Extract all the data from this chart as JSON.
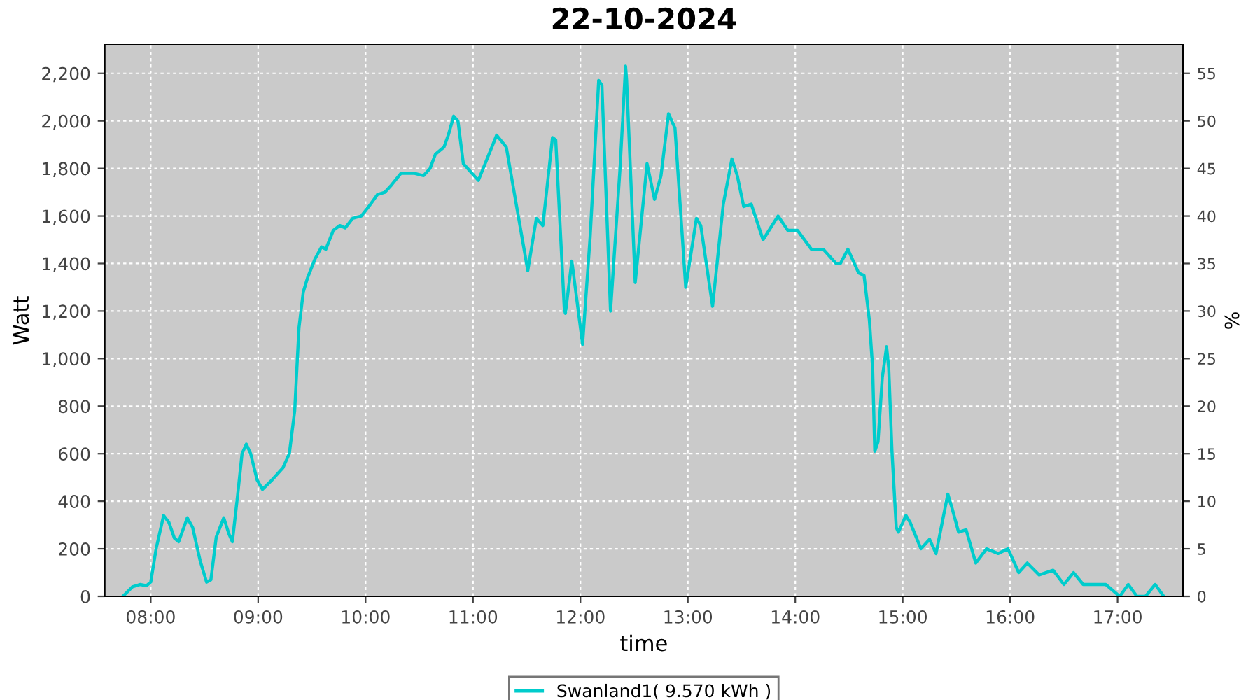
{
  "chart_data": {
    "type": "line",
    "title": "22-10-2024",
    "xlabel": "time",
    "ylabel": "Watt",
    "y2label": "%",
    "xlim": [
      7.57,
      17.61
    ],
    "ylim": [
      0,
      2320
    ],
    "y2lim": [
      0,
      58
    ],
    "xticks": [
      {
        "value": 8,
        "label": "08:00"
      },
      {
        "value": 9,
        "label": "09:00"
      },
      {
        "value": 10,
        "label": "10:00"
      },
      {
        "value": 11,
        "label": "11:00"
      },
      {
        "value": 12,
        "label": "12:00"
      },
      {
        "value": 13,
        "label": "13:00"
      },
      {
        "value": 14,
        "label": "14:00"
      },
      {
        "value": 15,
        "label": "15:00"
      },
      {
        "value": 16,
        "label": "16:00"
      },
      {
        "value": 17,
        "label": "17:00"
      }
    ],
    "yticks": [
      0,
      {
        "value": 200,
        "label": "200"
      },
      {
        "value": 400,
        "label": "400"
      },
      {
        "value": 600,
        "label": "600"
      },
      {
        "value": 800,
        "label": "800"
      },
      {
        "value": 1000,
        "label": "1,000"
      },
      {
        "value": 1200,
        "label": "1,200"
      },
      {
        "value": 1400,
        "label": "1,400"
      },
      {
        "value": 1600,
        "label": "1,600"
      },
      {
        "value": 1800,
        "label": "1,800"
      },
      {
        "value": 2000,
        "label": "2,000"
      },
      {
        "value": 2200,
        "label": "2,200"
      }
    ],
    "y2ticks": [
      0,
      5,
      10,
      15,
      20,
      25,
      30,
      35,
      40,
      45,
      50,
      55
    ],
    "grid": true,
    "legend": "bottom",
    "marker": "none",
    "line_style": "solid",
    "series": [
      {
        "name": "Swanland1( 9.570 kWh )",
        "color": "#00cccc",
        "x": [
          7.74,
          7.83,
          7.9,
          7.96,
          8.0,
          8.05,
          8.12,
          8.17,
          8.22,
          8.26,
          8.34,
          8.39,
          8.46,
          8.52,
          8.56,
          8.61,
          8.68,
          8.73,
          8.76,
          8.81,
          8.85,
          8.89,
          8.93,
          8.99,
          9.04,
          9.13,
          9.23,
          9.29,
          9.34,
          9.38,
          9.42,
          9.46,
          9.53,
          9.59,
          9.63,
          9.7,
          9.76,
          9.81,
          9.88,
          9.96,
          10.03,
          10.11,
          10.18,
          10.24,
          10.33,
          10.45,
          10.54,
          10.6,
          10.65,
          10.73,
          10.77,
          10.82,
          10.86,
          10.91,
          11.05,
          11.22,
          11.31,
          11.51,
          11.59,
          11.65,
          11.74,
          11.77,
          11.85,
          11.86,
          11.92,
          12.02,
          12.09,
          12.17,
          12.2,
          12.28,
          12.37,
          12.42,
          12.43,
          12.51,
          12.62,
          12.69,
          12.75,
          12.82,
          12.88,
          12.98,
          13.08,
          13.12,
          13.23,
          13.33,
          13.41,
          13.46,
          13.52,
          13.59,
          13.7,
          13.84,
          13.93,
          14.02,
          14.15,
          14.26,
          14.38,
          14.42,
          14.49,
          14.59,
          14.64,
          14.69,
          14.72,
          14.74,
          14.77,
          14.81,
          14.85,
          14.87,
          14.9,
          14.94,
          14.96,
          15.03,
          15.07,
          15.17,
          15.25,
          15.31,
          15.42,
          15.46,
          15.52,
          15.59,
          15.68,
          15.78,
          15.89,
          15.98,
          16.08,
          16.16,
          16.27,
          16.4,
          16.5,
          16.59,
          16.68,
          16.89,
          17.02,
          17.1,
          17.18,
          17.26,
          17.35,
          17.43
        ],
        "values": [
          0,
          40,
          50,
          45,
          60,
          200,
          340,
          310,
          245,
          230,
          330,
          290,
          150,
          60,
          70,
          250,
          330,
          260,
          230,
          430,
          600,
          640,
          600,
          490,
          450,
          490,
          540,
          600,
          780,
          1130,
          1280,
          1340,
          1420,
          1470,
          1460,
          1540,
          1560,
          1550,
          1590,
          1600,
          1640,
          1690,
          1700,
          1730,
          1780,
          1780,
          1770,
          1800,
          1860,
          1890,
          1940,
          2020,
          2000,
          1820,
          1750,
          1940,
          1890,
          1370,
          1590,
          1560,
          1930,
          1920,
          1210,
          1190,
          1410,
          1060,
          1510,
          2170,
          2150,
          1200,
          1810,
          2230,
          2170,
          1320,
          1820,
          1670,
          1770,
          2030,
          1970,
          1300,
          1590,
          1560,
          1220,
          1650,
          1840,
          1770,
          1640,
          1650,
          1500,
          1600,
          1540,
          1540,
          1460,
          1460,
          1400,
          1400,
          1460,
          1360,
          1350,
          1160,
          960,
          610,
          650,
          920,
          1050,
          960,
          610,
          290,
          270,
          340,
          310,
          200,
          240,
          180,
          430,
          370,
          270,
          280,
          140,
          200,
          180,
          200,
          100,
          140,
          90,
          110,
          50,
          100,
          50,
          50,
          0,
          50,
          0,
          0,
          50,
          0
        ]
      }
    ]
  }
}
